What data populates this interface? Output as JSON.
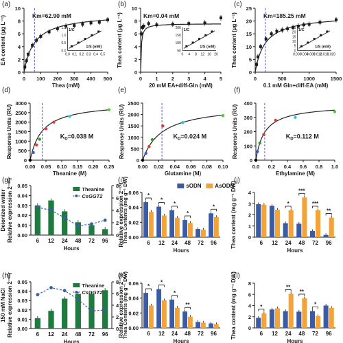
{
  "colors": {
    "dark": "#1a1a1a",
    "green": "#1e7a3e",
    "blue": "#3b5ba5",
    "orange": "#f2a33a",
    "purple_dash": "#5b5bd6",
    "fit": "#222222"
  },
  "chart_data": [
    {
      "id": "a",
      "panel_label": "(a)",
      "type": "scatter",
      "fit": "michaelis",
      "xlabel": "Thea (mM)",
      "ylabel": "EA content (µg L⁻¹)",
      "xlim": [
        0,
        500
      ],
      "ylim": [
        0,
        10
      ],
      "xticks": [
        0,
        100,
        200,
        300,
        400,
        500
      ],
      "yticks": [
        0,
        2,
        4,
        6,
        8,
        10
      ],
      "km_label": "Km=62.90 mM",
      "km_x": 62.9,
      "vmax": 9.2,
      "points": {
        "x": [
          5,
          15,
          25,
          50,
          75,
          100,
          150,
          200,
          250,
          300,
          350,
          400,
          450,
          500
        ],
        "y": [
          0.8,
          1.8,
          2.8,
          4.2,
          5.0,
          5.6,
          6.3,
          6.8,
          7.2,
          7.3,
          7.5,
          7.7,
          7.8,
          8.2
        ]
      },
      "inset": {
        "xlabel": "1/S (mM)",
        "ylabel": "1/C",
        "xticks": [
          "0.0",
          "0.1",
          "0.2",
          "0.3",
          "0.4",
          "0.5"
        ],
        "yticks": [
          "0.0",
          "0.5",
          "1.0",
          "1.5"
        ]
      }
    },
    {
      "id": "b",
      "panel_label": "(b)",
      "type": "scatter",
      "fit": "michaelis",
      "xlabel": "20 mM EA+diff-Gln (mM)",
      "ylabel": "Thea content (µg L⁻¹)",
      "xlim": [
        0,
        5
      ],
      "ylim": [
        0,
        10
      ],
      "xticks": [
        0,
        1,
        2,
        3,
        4,
        5
      ],
      "yticks": [
        0,
        2,
        4,
        6,
        8,
        10
      ],
      "km_label": "Km=0.04 mM",
      "km_x": null,
      "vmax": 7.6,
      "km": 0.04,
      "points": {
        "x": [
          0.05,
          0.1,
          0.2,
          0.5,
          1,
          2,
          3,
          4,
          5
        ],
        "y": [
          6.0,
          7.0,
          7.2,
          7.6,
          7.4,
          7.5,
          7.6,
          7.7,
          8.5
        ]
      },
      "inset": {
        "xlabel": "1/S (mM)",
        "ylabel": "1/C",
        "xticks": [
          "0",
          "4",
          "8",
          "12",
          "16",
          "20"
        ],
        "yticks": [
          "50",
          "100",
          "150",
          "200"
        ]
      }
    },
    {
      "id": "c",
      "panel_label": "(c)",
      "type": "scatter",
      "fit": "michaelis",
      "xlabel": "0.1 mM Gln+diff-EA (mM)",
      "ylabel": "Thea content (µg L⁻¹)",
      "xlim": [
        0,
        1500
      ],
      "ylim": [
        0,
        25
      ],
      "xticks": [
        0,
        500,
        1000,
        1500
      ],
      "yticks": [
        0,
        5,
        10,
        15,
        20,
        25
      ],
      "km_label": "Km=185.25 mM",
      "km_x": 185.25,
      "vmax": 22.5,
      "points": {
        "x": [
          25,
          50,
          100,
          200,
          300,
          400,
          500,
          600,
          700,
          800,
          900,
          1000,
          1200,
          1500
        ],
        "y": [
          3,
          6,
          10,
          13,
          15,
          16,
          16.5,
          17,
          17.5,
          18,
          18.5,
          18.7,
          19.5,
          20.5
        ]
      },
      "inset": {
        "xlabel": "1/S (mM)",
        "ylabel": "1/C",
        "xticks": [
          "0.000",
          "0.004",
          "0.008",
          "0.012",
          "0.016",
          "0.020"
        ],
        "yticks": [
          "0",
          "5",
          "10",
          "15",
          "20",
          "25"
        ]
      }
    },
    {
      "id": "d",
      "panel_label": "(d)",
      "type": "scatter",
      "fit": "binding",
      "xlabel": "Theanine (M)",
      "ylabel": "Response Units (RU)",
      "xlim": [
        0,
        0.25
      ],
      "ylim": [
        0,
        3000
      ],
      "xticks": [
        "0.00",
        "0.05",
        "0.10",
        "0.15",
        "0.20",
        "0.25"
      ],
      "xtick_vals": [
        0,
        0.05,
        0.1,
        0.15,
        0.2,
        0.25
      ],
      "yticks": [
        0,
        500,
        1000,
        1500,
        2000,
        2500,
        3000
      ],
      "kd_label": "K",
      "kd_sub": "D",
      "kd_rest": "=0.038 M",
      "kd": 0.038,
      "rmax": 3050,
      "points": {
        "x": [
          0.0,
          0.01,
          0.02,
          0.03,
          0.05,
          0.075,
          0.125,
          0.25
        ],
        "y": [
          0,
          400,
          800,
          1100,
          1650,
          2000,
          2300,
          2650
        ]
      },
      "point_colors": [
        "#000000",
        "#3b5bd6",
        "#e23a3a",
        "#2aa02a",
        "#e23a3a",
        "#e23a3a",
        "#35c1e0",
        "#4ccf2f"
      ]
    },
    {
      "id": "e",
      "panel_label": "(e)",
      "type": "scatter",
      "fit": "binding",
      "xlabel": "Glutamine (M)",
      "ylabel": "Response Units (RU)",
      "xlim": [
        0,
        0.1
      ],
      "ylim": [
        0,
        2500
      ],
      "xticks": [
        "0.00",
        "0.02",
        "0.04",
        "0.06",
        "0.08",
        "0.10"
      ],
      "xtick_vals": [
        0,
        0.02,
        0.04,
        0.06,
        0.08,
        0.1
      ],
      "yticks": [
        0,
        500,
        1000,
        1500,
        2000,
        2500
      ],
      "kd_label": "K",
      "kd_sub": "D",
      "kd_rest": "=0.024 M",
      "kd": 0.024,
      "rmax": 2450,
      "points": {
        "x": [
          0.0,
          0.004,
          0.008,
          0.012,
          0.025,
          0.05,
          0.1
        ],
        "y": [
          0,
          300,
          600,
          900,
          1500,
          1650,
          1950
        ]
      },
      "point_colors": [
        "#000000",
        "#3b5bd6",
        "#e23a3a",
        "#2aa02a",
        "#e23a3a",
        "#35c1e0",
        "#4ccf2f"
      ]
    },
    {
      "id": "f",
      "panel_label": "(f)",
      "type": "scatter",
      "fit": "binding",
      "xlabel": "Ethylamine (M)",
      "ylabel": "Response Units (RU)",
      "xlim": [
        0,
        1.0
      ],
      "ylim": [
        0,
        400
      ],
      "xticks": [
        "0.0",
        "0.2",
        "0.4",
        "0.6",
        "0.8",
        "1.0"
      ],
      "xtick_vals": [
        0,
        0.2,
        0.4,
        0.6,
        0.8,
        1.0
      ],
      "yticks": [
        0,
        100,
        200,
        300,
        400
      ],
      "kd_label": "K",
      "kd_sub": "D",
      "kd_rest": "=0.112 M",
      "kd": 0.112,
      "rmax": 390,
      "points": {
        "x": [
          0.0,
          0.02,
          0.05,
          0.1,
          0.25,
          0.5,
          1.0
        ],
        "y": [
          0,
          60,
          120,
          180,
          280,
          300,
          340
        ]
      },
      "point_colors": [
        "#000000",
        "#3b5bd6",
        "#2aa02a",
        "#e23a3a",
        "#e23a3a",
        "#35c1e0",
        "#4ccf2f"
      ]
    },
    {
      "id": "g",
      "panel_label": "(g)",
      "type": "bar",
      "side_label": "Deionized water",
      "xlabel": "Hours",
      "ylabel": "Relative expression 2⁻ᶜᑫ",
      "ylabel2": "Thea Contents (mg g⁻¹ DW)",
      "categories": [
        "6",
        "12",
        "24",
        "48",
        "72",
        "96"
      ],
      "ylim": [
        0,
        0.05
      ],
      "yticks": [
        "0.00",
        "0.01",
        "0.02",
        "0.03",
        "0.04",
        "0.05"
      ],
      "ylim2": [
        0,
        8
      ],
      "yticks2": [
        "0",
        "2",
        "4",
        "6",
        "8"
      ],
      "series": [
        {
          "name": "Theanine",
          "values": [
            0.03,
            0.035,
            0.024,
            0.013,
            0.01,
            0.006
          ]
        },
        {
          "name": "CsGGT2",
          "values": [
            4.5,
            4.0,
            2.8,
            1.5,
            1.8,
            2.4
          ]
        }
      ]
    },
    {
      "id": "h",
      "panel_label": "(h)",
      "type": "bar",
      "side_label": "150 mM NaCl",
      "xlabel": "Hours",
      "ylabel": "Relative expression 2⁻ᶜᑫ",
      "ylabel2": "Thea Contents (mg g⁻¹ DW)",
      "categories": [
        "6",
        "12",
        "24",
        "48",
        "72",
        "96"
      ],
      "ylim": [
        0,
        0.05
      ],
      "yticks": [
        "0.00",
        "0.01",
        "0.02",
        "0.03",
        "0.04",
        "0.05"
      ],
      "ylim2": [
        0,
        8
      ],
      "yticks2": [
        "0",
        "2",
        "4",
        "6",
        "8"
      ],
      "series": [
        {
          "name": "Theanine",
          "values": [
            0.011,
            0.019,
            0.032,
            0.037,
            0.037,
            0.041
          ]
        },
        {
          "name": "CsGGT2",
          "values": [
            5.8,
            7.0,
            6.5,
            5.0,
            3.0,
            3.2
          ]
        }
      ]
    },
    {
      "id": "i",
      "panel_label": "(i)",
      "type": "bar",
      "xlabel": "Hours",
      "ylabel": "Relative expression 2⁻ᶜᑫ",
      "categories": [
        "6",
        "12",
        "24",
        "48",
        "72",
        "96"
      ],
      "ylim": [
        0,
        0.06
      ],
      "yticks": [
        "0.00",
        "0.02",
        "0.04",
        "0.06"
      ],
      "series": [
        {
          "name": "sODN",
          "values": [
            0.047,
            0.041,
            0.036,
            0.023,
            0.011,
            0.032
          ]
        },
        {
          "name": "AsODN",
          "values": [
            0.034,
            0.029,
            0.026,
            0.019,
            0.01,
            0.027
          ]
        }
      ],
      "sig": [
        {
          "i": 0,
          "t": "*"
        },
        {
          "i": 1,
          "t": "*"
        },
        {
          "i": 2,
          "t": "*"
        },
        {
          "i": 3,
          "t": "*"
        },
        {
          "i": 5,
          "t": "*"
        }
      ]
    },
    {
      "id": "j",
      "panel_label": "(j)",
      "type": "bar",
      "xlabel": "Hours",
      "ylabel": "Thea content (mg g⁻¹ DW)",
      "categories": [
        "6",
        "12",
        "24",
        "48",
        "72",
        "96"
      ],
      "ylim": [
        0,
        4
      ],
      "yticks": [
        "0",
        "1",
        "2",
        "3",
        "4"
      ],
      "series": [
        {
          "name": "sODN",
          "values": [
            2.95,
            2.8,
            1.25,
            1.2,
            0.55,
            0.2
          ]
        },
        {
          "name": "AsODN",
          "values": [
            2.9,
            2.45,
            2.4,
            3.55,
            2.4,
            1.75
          ]
        }
      ],
      "sig": [
        {
          "i": 2,
          "t": "*"
        },
        {
          "i": 3,
          "t": "***"
        },
        {
          "i": 4,
          "t": "***"
        },
        {
          "i": 5,
          "t": "**"
        }
      ]
    },
    {
      "id": "k",
      "panel_label": "(k)",
      "type": "bar",
      "xlabel": "Hours",
      "ylabel": "Relative expression 2⁻ᶜᑫ",
      "categories": [
        "6",
        "12",
        "24",
        "48",
        "72",
        "96"
      ],
      "ylim": [
        0,
        0.06
      ],
      "yticks": [
        "0.00",
        "0.02",
        "0.04",
        "0.06"
      ],
      "series": [
        {
          "name": "sODN",
          "values": [
            0.047,
            0.052,
            0.038,
            0.022,
            0.008,
            0.006
          ]
        },
        {
          "name": "AsODN",
          "values": [
            0.03,
            0.037,
            0.027,
            0.015,
            0.007,
            0.005
          ]
        }
      ],
      "sig": [
        {
          "i": 0,
          "t": "*"
        },
        {
          "i": 1,
          "t": "*"
        },
        {
          "i": 2,
          "t": "*"
        },
        {
          "i": 3,
          "t": "**"
        }
      ]
    },
    {
      "id": "l",
      "panel_label": "(l)",
      "type": "bar",
      "xlabel": "Hours",
      "ylabel": "Thea content (mg g⁻¹ DW)",
      "categories": [
        "6",
        "12",
        "24",
        "48",
        "72",
        "96"
      ],
      "ylim": [
        0,
        8
      ],
      "yticks": [
        "0",
        "2",
        "4",
        "6",
        "8"
      ],
      "series": [
        {
          "name": "sODN",
          "values": [
            1.8,
            3.3,
            3.0,
            2.9,
            3.0,
            4.0
          ]
        },
        {
          "name": "AsODN",
          "values": [
            2.6,
            3.5,
            6.1,
            5.3,
            2.1,
            3.6
          ]
        }
      ],
      "sig": [
        {
          "i": 0,
          "t": "*"
        },
        {
          "i": 2,
          "t": "**"
        },
        {
          "i": 3,
          "t": "**"
        },
        {
          "i": 4,
          "t": "*"
        }
      ]
    }
  ]
}
